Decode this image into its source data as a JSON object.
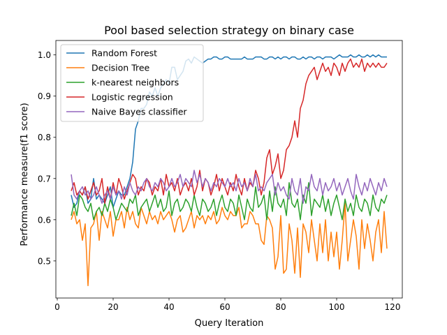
{
  "chart_data": {
    "type": "line",
    "title": "Pool based selection strategy on binary case",
    "xlabel": "Query Iteration",
    "ylabel": "Performance measure(f1 score)",
    "xlim": [
      -0.5,
      123.5
    ],
    "ylim": [
      0.41,
      1.035
    ],
    "xticks": [
      0,
      20,
      40,
      60,
      80,
      100,
      120
    ],
    "yticks": [
      0.5,
      0.6,
      0.7,
      0.8,
      0.9,
      1.0
    ],
    "xtick_labels": [
      "0",
      "20",
      "40",
      "60",
      "80",
      "100",
      "120"
    ],
    "ytick_labels": [
      "0.5",
      "0.6",
      "0.7",
      "0.8",
      "0.9",
      "1.0"
    ],
    "grid": false,
    "legend_position": "upper-left",
    "x_start": 5,
    "series": [
      {
        "name": "Random Forest",
        "color": "#1f77b4",
        "values": [
          0.66,
          0.63,
          0.64,
          0.67,
          0.66,
          0.68,
          0.64,
          0.65,
          0.7,
          0.65,
          0.66,
          0.65,
          0.64,
          0.66,
          0.68,
          0.63,
          0.65,
          0.67,
          0.66,
          0.66,
          0.68,
          0.7,
          0.74,
          0.82,
          0.84,
          0.87,
          0.87,
          0.88,
          0.91,
          0.9,
          0.92,
          0.9,
          0.92,
          0.93,
          0.94,
          0.93,
          0.97,
          0.97,
          0.94,
          0.95,
          0.96,
          0.985,
          0.99,
          0.98,
          0.995,
          0.99,
          0.985,
          0.98,
          0.985,
          0.99,
          0.99,
          0.995,
          0.995,
          0.99,
          0.99,
          0.995,
          0.995,
          0.99,
          0.99,
          0.99,
          0.99,
          0.99,
          0.995,
          0.99,
          0.99,
          0.99,
          0.995,
          0.995,
          0.995,
          0.99,
          0.99,
          0.995,
          0.995,
          0.99,
          0.995,
          0.99,
          0.995,
          0.995,
          0.99,
          0.995,
          0.995,
          0.99,
          0.99,
          0.995,
          0.99,
          0.995,
          0.995,
          0.99,
          0.995,
          0.995,
          0.99,
          0.995,
          0.995,
          0.995,
          0.99,
          0.995,
          1.0,
          0.995,
          0.995,
          0.995,
          1.0,
          0.995,
          0.995,
          1.0,
          0.995,
          0.995,
          1.0,
          0.995,
          1.0,
          0.995,
          1.0,
          0.995,
          0.995,
          0.995
        ]
      },
      {
        "name": "Decision Tree",
        "color": "#ff7f0e",
        "values": [
          0.6,
          0.62,
          0.59,
          0.6,
          0.55,
          0.59,
          0.44,
          0.58,
          0.59,
          0.62,
          0.55,
          0.62,
          0.6,
          0.58,
          0.62,
          0.56,
          0.6,
          0.6,
          0.62,
          0.58,
          0.63,
          0.6,
          0.62,
          0.59,
          0.58,
          0.63,
          0.61,
          0.59,
          0.62,
          0.6,
          0.61,
          0.59,
          0.62,
          0.6,
          0.61,
          0.62,
          0.6,
          0.57,
          0.6,
          0.61,
          0.57,
          0.58,
          0.6,
          0.62,
          0.58,
          0.61,
          0.6,
          0.61,
          0.59,
          0.61,
          0.6,
          0.62,
          0.59,
          0.6,
          0.63,
          0.61,
          0.6,
          0.62,
          0.61,
          0.61,
          0.63,
          0.58,
          0.59,
          0.59,
          0.62,
          0.61,
          0.59,
          0.59,
          0.55,
          0.54,
          0.61,
          0.6,
          0.58,
          0.48,
          0.51,
          0.61,
          0.47,
          0.48,
          0.59,
          0.55,
          0.47,
          0.58,
          0.46,
          0.59,
          0.57,
          0.52,
          0.6,
          0.55,
          0.5,
          0.59,
          0.52,
          0.6,
          0.5,
          0.57,
          0.51,
          0.57,
          0.48,
          0.55,
          0.64,
          0.5,
          0.55,
          0.6,
          0.56,
          0.48,
          0.6,
          0.53,
          0.59,
          0.55,
          0.5,
          0.57,
          0.6,
          0.52,
          0.62,
          0.53
        ]
      },
      {
        "name": "k-nearest neighbors",
        "color": "#2ca02c",
        "values": [
          0.61,
          0.64,
          0.61,
          0.66,
          0.65,
          0.63,
          0.62,
          0.64,
          0.6,
          0.62,
          0.63,
          0.61,
          0.64,
          0.62,
          0.65,
          0.63,
          0.6,
          0.62,
          0.64,
          0.63,
          0.62,
          0.65,
          0.64,
          0.66,
          0.61,
          0.63,
          0.64,
          0.65,
          0.62,
          0.64,
          0.66,
          0.63,
          0.65,
          0.62,
          0.63,
          0.67,
          0.61,
          0.64,
          0.65,
          0.62,
          0.63,
          0.65,
          0.64,
          0.62,
          0.66,
          0.63,
          0.61,
          0.65,
          0.64,
          0.62,
          0.63,
          0.65,
          0.61,
          0.64,
          0.66,
          0.63,
          0.62,
          0.65,
          0.64,
          0.61,
          0.66,
          0.63,
          0.6,
          0.65,
          0.63,
          0.62,
          0.68,
          0.63,
          0.64,
          0.66,
          0.6,
          0.67,
          0.62,
          0.68,
          0.64,
          0.63,
          0.65,
          0.61,
          0.69,
          0.64,
          0.63,
          0.65,
          0.6,
          0.66,
          0.64,
          0.69,
          0.61,
          0.65,
          0.64,
          0.63,
          0.66,
          0.62,
          0.65,
          0.61,
          0.64,
          0.66,
          0.63,
          0.6,
          0.65,
          0.62,
          0.64,
          0.61,
          0.66,
          0.63,
          0.62,
          0.65,
          0.64,
          0.61,
          0.66,
          0.63,
          0.62,
          0.65,
          0.64,
          0.66
        ]
      },
      {
        "name": "Logistic regression",
        "color": "#d62728",
        "values": [
          0.67,
          0.69,
          0.66,
          0.67,
          0.66,
          0.68,
          0.65,
          0.67,
          0.69,
          0.66,
          0.67,
          0.7,
          0.64,
          0.68,
          0.65,
          0.69,
          0.66,
          0.7,
          0.68,
          0.65,
          0.67,
          0.69,
          0.71,
          0.7,
          0.66,
          0.68,
          0.67,
          0.7,
          0.69,
          0.66,
          0.68,
          0.67,
          0.7,
          0.66,
          0.71,
          0.68,
          0.69,
          0.67,
          0.7,
          0.66,
          0.68,
          0.69,
          0.67,
          0.7,
          0.66,
          0.68,
          0.72,
          0.67,
          0.7,
          0.69,
          0.66,
          0.68,
          0.71,
          0.67,
          0.7,
          0.68,
          0.66,
          0.69,
          0.67,
          0.71,
          0.68,
          0.66,
          0.7,
          0.67,
          0.69,
          0.68,
          0.72,
          0.7,
          0.66,
          0.69,
          0.75,
          0.77,
          0.71,
          0.73,
          0.76,
          0.7,
          0.72,
          0.77,
          0.78,
          0.8,
          0.84,
          0.8,
          0.87,
          0.89,
          0.93,
          0.95,
          0.96,
          0.97,
          0.94,
          0.96,
          0.98,
          0.96,
          0.97,
          0.95,
          0.98,
          0.97,
          0.95,
          0.98,
          0.96,
          0.98,
          0.99,
          0.97,
          0.98,
          0.97,
          0.99,
          0.96,
          0.98,
          0.97,
          0.98,
          0.97,
          0.98,
          0.97,
          0.97,
          0.98
        ]
      },
      {
        "name": "Naive Bayes classifier",
        "color": "#9467bd",
        "values": [
          0.71,
          0.66,
          0.65,
          0.67,
          0.68,
          0.66,
          0.67,
          0.65,
          0.66,
          0.68,
          0.66,
          0.64,
          0.66,
          0.67,
          0.65,
          0.68,
          0.66,
          0.67,
          0.65,
          0.68,
          0.66,
          0.69,
          0.67,
          0.66,
          0.68,
          0.67,
          0.69,
          0.7,
          0.68,
          0.67,
          0.69,
          0.68,
          0.7,
          0.69,
          0.67,
          0.68,
          0.7,
          0.68,
          0.69,
          0.71,
          0.68,
          0.7,
          0.69,
          0.68,
          0.72,
          0.69,
          0.71,
          0.68,
          0.7,
          0.69,
          0.67,
          0.69,
          0.68,
          0.7,
          0.69,
          0.68,
          0.7,
          0.68,
          0.69,
          0.67,
          0.7,
          0.68,
          0.69,
          0.67,
          0.7,
          0.68,
          0.71,
          0.67,
          0.68,
          0.67,
          0.69,
          0.7,
          0.71,
          0.66,
          0.69,
          0.67,
          0.68,
          0.66,
          0.65,
          0.7,
          0.67,
          0.66,
          0.7,
          0.64,
          0.68,
          0.67,
          0.71,
          0.68,
          0.67,
          0.7,
          0.66,
          0.69,
          0.67,
          0.68,
          0.7,
          0.67,
          0.69,
          0.66,
          0.68,
          0.7,
          0.67,
          0.65,
          0.71,
          0.68,
          0.66,
          0.69,
          0.67,
          0.7,
          0.68,
          0.66,
          0.69,
          0.67,
          0.7,
          0.68
        ]
      }
    ]
  }
}
